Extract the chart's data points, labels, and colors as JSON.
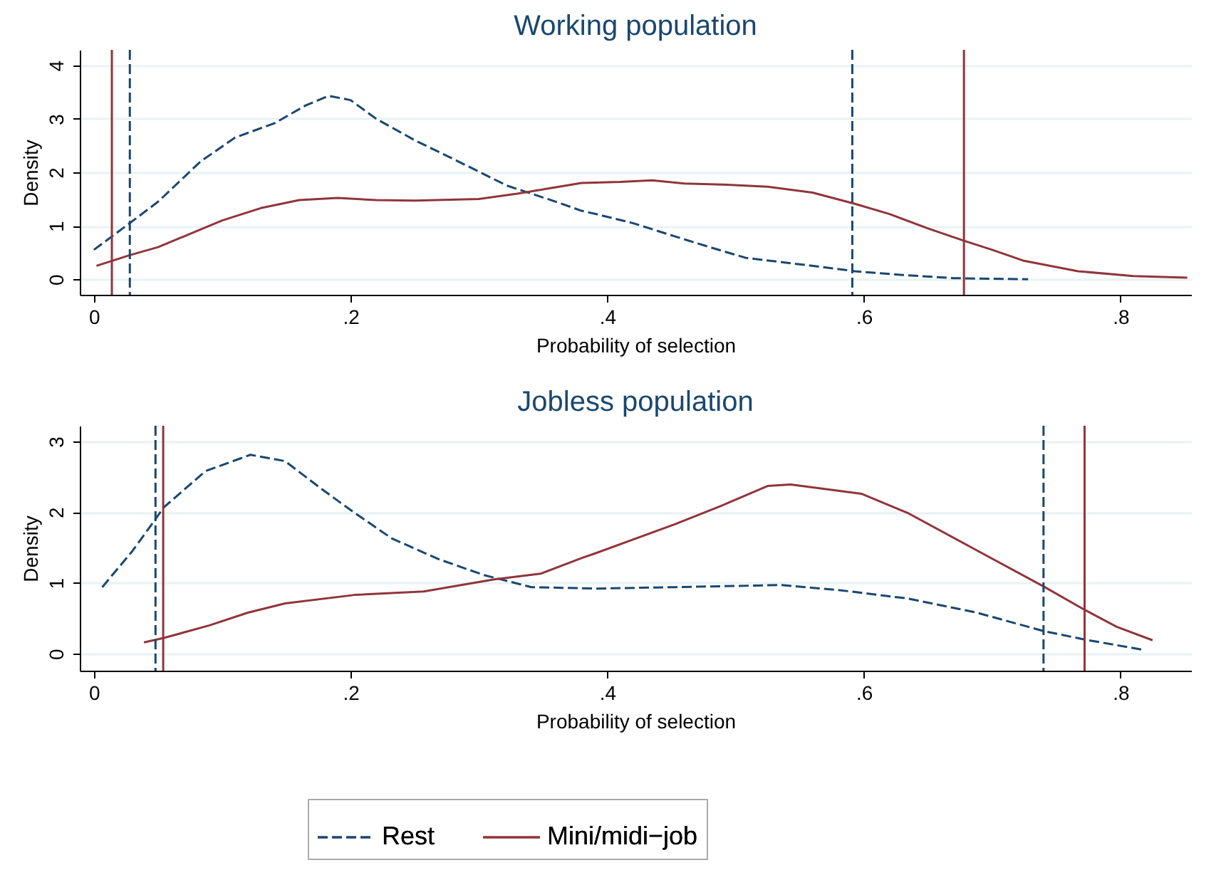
{
  "chart_data": [
    {
      "type": "line",
      "title": "Working population",
      "xlabel": "Probability of selection",
      "ylabel": "Density",
      "xlim": [
        -0.011,
        0.855
      ],
      "ylim": [
        -0.29,
        4.29
      ],
      "xticks": [
        0,
        {
          "value": 0.2,
          "label": ".2"
        },
        {
          "value": 0.4,
          "label": ".4"
        },
        {
          "value": 0.6,
          "label": ".6"
        },
        {
          "value": 0.8,
          "label": ".8"
        }
      ],
      "yticks": [
        0,
        1,
        2,
        3,
        4
      ],
      "grid": "y",
      "legend": false,
      "series": [
        {
          "color": "#1a476f",
          "line_style": "dashed",
          "x": [
            0,
            0.028,
            0.05,
            0.083,
            0.11,
            0.141,
            0.165,
            0.183,
            0.2,
            0.22,
            0.25,
            0.28,
            0.322,
            0.36,
            0.38,
            0.391,
            0.42,
            0.453,
            0.48,
            0.508,
            0.55,
            0.593,
            0.63,
            0.67,
            0.7,
            0.728
          ],
          "values": [
            0.55,
            1.05,
            1.45,
            2.2,
            2.65,
            2.92,
            3.25,
            3.43,
            3.35,
            3.0,
            2.6,
            2.25,
            1.75,
            1.45,
            1.28,
            1.22,
            1.05,
            0.8,
            0.6,
            0.4,
            0.28,
            0.15,
            0.08,
            0.02,
            0.01,
            0.0
          ]
        },
        {
          "color": "#90353b",
          "line_style": "solid",
          "x": [
            0.002,
            0.028,
            0.05,
            0.08,
            0.1,
            0.13,
            0.16,
            0.19,
            0.22,
            0.25,
            0.3,
            0.33,
            0.36,
            0.38,
            0.41,
            0.435,
            0.46,
            0.49,
            0.525,
            0.56,
            0.593,
            0.62,
            0.65,
            0.678,
            0.7,
            0.724,
            0.767,
            0.81,
            0.852
          ],
          "values": [
            0.25,
            0.45,
            0.6,
            0.9,
            1.1,
            1.33,
            1.48,
            1.52,
            1.48,
            1.47,
            1.5,
            1.6,
            1.72,
            1.8,
            1.82,
            1.85,
            1.79,
            1.77,
            1.73,
            1.62,
            1.41,
            1.22,
            0.95,
            0.72,
            0.55,
            0.35,
            0.15,
            0.06,
            0.03
          ]
        }
      ],
      "ref_lines": [
        {
          "axis": "x",
          "value": 0.014,
          "color": "#90353b",
          "line_style": "solid"
        },
        {
          "axis": "x",
          "value": 0.028,
          "color": "#1a476f",
          "line_style": "dashed"
        },
        {
          "axis": "x",
          "value": 0.591,
          "color": "#1a476f",
          "line_style": "dashed"
        },
        {
          "axis": "x",
          "value": 0.678,
          "color": "#90353b",
          "line_style": "solid"
        }
      ]
    },
    {
      "type": "line",
      "title": "Jobless population",
      "xlabel": "Probability of selection",
      "ylabel": "Density",
      "xlim": [
        -0.011,
        0.855
      ],
      "ylim": [
        -0.24,
        3.22
      ],
      "xticks": [
        0,
        {
          "value": 0.2,
          "label": ".2"
        },
        {
          "value": 0.4,
          "label": ".4"
        },
        {
          "value": 0.6,
          "label": ".6"
        },
        {
          "value": 0.8,
          "label": ".8"
        }
      ],
      "yticks": [
        0,
        1,
        2,
        3
      ],
      "grid": "y",
      "legend": "bottom",
      "series": [
        {
          "name": "Rest",
          "color": "#1a476f",
          "line_style": "dashed",
          "x": [
            0.0065,
            0.03,
            0.048,
            0.054,
            0.087,
            0.122,
            0.149,
            0.178,
            0.2,
            0.232,
            0.268,
            0.304,
            0.341,
            0.391,
            0.453,
            0.536,
            0.58,
            0.634,
            0.688,
            0.74,
            0.772,
            0.819
          ],
          "values": [
            0.94,
            1.45,
            1.9,
            2.06,
            2.58,
            2.81,
            2.72,
            2.32,
            2.03,
            1.63,
            1.34,
            1.11,
            0.94,
            0.92,
            0.94,
            0.97,
            0.9,
            0.78,
            0.58,
            0.32,
            0.2,
            0.05
          ]
        },
        {
          "name": "Mini/midi−job",
          "color": "#90353b",
          "line_style": "solid",
          "x": [
            0.039,
            0.054,
            0.09,
            0.12,
            0.149,
            0.203,
            0.257,
            0.312,
            0.348,
            0.38,
            0.391,
            0.453,
            0.489,
            0.525,
            0.543,
            0.598,
            0.634,
            0.688,
            0.74,
            0.772,
            0.797,
            0.825
          ],
          "values": [
            0.16,
            0.22,
            0.4,
            0.58,
            0.71,
            0.83,
            0.88,
            1.05,
            1.13,
            1.35,
            1.42,
            1.83,
            2.09,
            2.37,
            2.39,
            2.26,
            1.99,
            1.46,
            0.95,
            0.62,
            0.38,
            0.19
          ]
        }
      ],
      "ref_lines": [
        {
          "axis": "x",
          "value": 0.048,
          "color": "#1a476f",
          "line_style": "dashed"
        },
        {
          "axis": "x",
          "value": 0.054,
          "color": "#90353b",
          "line_style": "solid"
        },
        {
          "axis": "x",
          "value": 0.74,
          "color": "#1a476f",
          "line_style": "dashed"
        },
        {
          "axis": "x",
          "value": 0.772,
          "color": "#90353b",
          "line_style": "solid"
        }
      ]
    }
  ]
}
